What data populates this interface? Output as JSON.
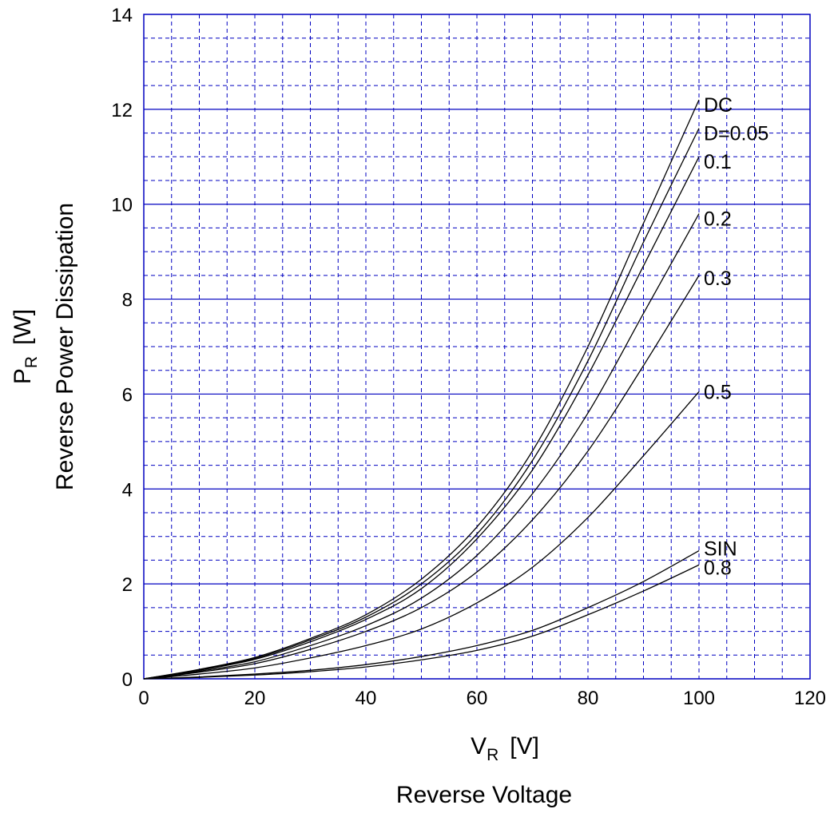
{
  "chart_data": {
    "type": "line",
    "xlabel": {
      "symbol": "V",
      "sub": "R",
      "unit": "[V]",
      "title": "Reverse Voltage"
    },
    "ylabel": {
      "symbol": "P",
      "sub": "R",
      "unit": "[W]",
      "title": "Reverse Power Dissipation"
    },
    "xlim": [
      0,
      120
    ],
    "ylim": [
      0,
      14
    ],
    "x_ticks": [
      0,
      20,
      40,
      60,
      80,
      100,
      120
    ],
    "y_ticks": [
      0,
      2,
      4,
      6,
      8,
      10,
      12,
      14
    ],
    "grid": true,
    "series": [
      {
        "name": "DC",
        "points": [
          [
            0,
            0
          ],
          [
            10,
            0.2
          ],
          [
            20,
            0.45
          ],
          [
            30,
            0.85
          ],
          [
            40,
            1.35
          ],
          [
            50,
            2.1
          ],
          [
            60,
            3.2
          ],
          [
            70,
            4.8
          ],
          [
            80,
            7.0
          ],
          [
            90,
            9.6
          ],
          [
            100,
            12.2
          ]
        ]
      },
      {
        "name": "D=0.05",
        "points": [
          [
            0,
            0
          ],
          [
            10,
            0.19
          ],
          [
            20,
            0.43
          ],
          [
            30,
            0.82
          ],
          [
            40,
            1.3
          ],
          [
            50,
            2.0
          ],
          [
            60,
            3.05
          ],
          [
            70,
            4.6
          ],
          [
            80,
            6.7
          ],
          [
            90,
            9.2
          ],
          [
            100,
            11.6
          ]
        ]
      },
      {
        "name": "0.1",
        "points": [
          [
            0,
            0
          ],
          [
            10,
            0.18
          ],
          [
            20,
            0.41
          ],
          [
            30,
            0.78
          ],
          [
            40,
            1.25
          ],
          [
            50,
            1.9
          ],
          [
            60,
            2.95
          ],
          [
            70,
            4.4
          ],
          [
            80,
            6.4
          ],
          [
            90,
            8.7
          ],
          [
            100,
            11.0
          ]
        ]
      },
      {
        "name": "0.2",
        "points": [
          [
            0,
            0
          ],
          [
            10,
            0.16
          ],
          [
            20,
            0.36
          ],
          [
            30,
            0.7
          ],
          [
            40,
            1.12
          ],
          [
            50,
            1.7
          ],
          [
            60,
            2.6
          ],
          [
            70,
            3.9
          ],
          [
            80,
            5.6
          ],
          [
            90,
            7.7
          ],
          [
            100,
            9.8
          ]
        ]
      },
      {
        "name": "0.3",
        "points": [
          [
            0,
            0
          ],
          [
            10,
            0.14
          ],
          [
            20,
            0.32
          ],
          [
            30,
            0.62
          ],
          [
            40,
            1.0
          ],
          [
            50,
            1.5
          ],
          [
            60,
            2.25
          ],
          [
            70,
            3.35
          ],
          [
            80,
            4.8
          ],
          [
            90,
            6.6
          ],
          [
            100,
            8.5
          ]
        ]
      },
      {
        "name": "0.5",
        "points": [
          [
            0,
            0
          ],
          [
            10,
            0.1
          ],
          [
            20,
            0.23
          ],
          [
            30,
            0.44
          ],
          [
            40,
            0.7
          ],
          [
            50,
            1.05
          ],
          [
            60,
            1.6
          ],
          [
            70,
            2.35
          ],
          [
            80,
            3.4
          ],
          [
            90,
            4.7
          ],
          [
            100,
            6.05
          ]
        ]
      },
      {
        "name": "SIN",
        "points": [
          [
            0,
            0
          ],
          [
            10,
            0.04
          ],
          [
            20,
            0.1
          ],
          [
            30,
            0.18
          ],
          [
            40,
            0.3
          ],
          [
            50,
            0.47
          ],
          [
            60,
            0.7
          ],
          [
            70,
            1.02
          ],
          [
            80,
            1.5
          ],
          [
            90,
            2.05
          ],
          [
            100,
            2.7
          ]
        ]
      },
      {
        "name": "0.8",
        "points": [
          [
            0,
            0
          ],
          [
            10,
            0.03
          ],
          [
            20,
            0.08
          ],
          [
            30,
            0.15
          ],
          [
            40,
            0.25
          ],
          [
            50,
            0.4
          ],
          [
            60,
            0.6
          ],
          [
            70,
            0.9
          ],
          [
            80,
            1.35
          ],
          [
            90,
            1.85
          ],
          [
            100,
            2.4
          ]
        ]
      }
    ],
    "series_label_values": [
      12.1,
      11.5,
      10.9,
      9.7,
      8.45,
      6.05,
      2.75,
      2.35
    ]
  }
}
